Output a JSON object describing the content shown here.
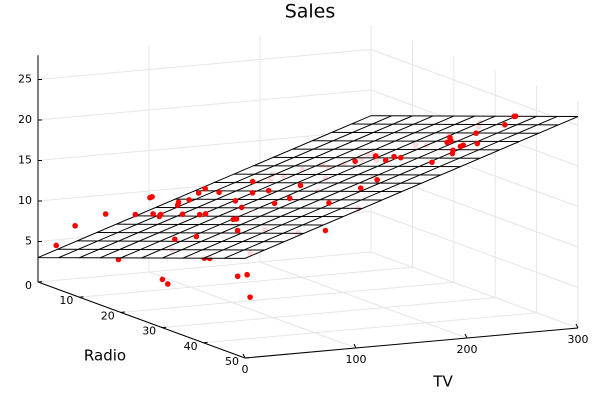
{
  "chart_data": {
    "type": "scatter3d",
    "title": "Sales",
    "x_label": "TV",
    "y_label": "Radio",
    "xlim": [
      0,
      300
    ],
    "ylim": [
      0,
      50
    ],
    "zlim": [
      0,
      28
    ],
    "xticks": [
      0,
      100,
      200,
      300
    ],
    "yticks": [
      0,
      10,
      20,
      30,
      40,
      50
    ],
    "zticks": [
      5,
      10,
      15,
      20,
      25
    ],
    "color": "#ff0000",
    "plane_color": "#000000",
    "grid": true,
    "x": [
      230.1,
      44.5,
      17.2,
      151.5,
      180.8,
      8.7,
      57.5,
      120.2,
      8.6,
      199.8,
      66.1,
      214.7,
      23.8,
      97.5,
      204.1,
      195.4,
      67.8,
      281.4,
      69.2,
      147.3,
      218.4,
      237.4,
      13.2,
      228.3,
      62.3,
      262.9,
      142.9,
      240.1,
      248.8,
      70.6,
      292.9,
      112.9,
      97.2,
      265.6,
      95.7,
      290.7,
      266.9,
      74.7,
      43.1,
      228,
      202.5,
      177,
      293.6,
      206.9,
      25.1,
      175.1,
      89.7,
      239.9,
      227.2,
      66.9,
      199.8,
      100.4,
      216.4,
      182.6,
      262.7,
      198.9,
      7.3,
      136.2,
      210.8,
      210.7,
      53.5,
      261.3,
      239.3,
      102.7,
      131.1,
      69,
      31.5,
      139.3,
      237.4,
      216.8,
      199.1,
      109.8,
      26.8,
      129.4,
      213.4,
      16.9,
      27.5,
      120.5,
      5.4,
      116,
      76.4,
      239.8,
      75.3,
      68.4,
      213.5,
      193.2,
      76.3,
      110.7,
      88.3,
      109.8
    ],
    "y": [
      37.8,
      39.3,
      45.9,
      41.3,
      10.8,
      48.9,
      32.8,
      19.6,
      2.1,
      2.6,
      5.8,
      24,
      35.1,
      7.6,
      32.9,
      47.7,
      36.6,
      39.6,
      20.5,
      23.9,
      27.7,
      5.1,
      15.9,
      16.9,
      12.6,
      3.5,
      29.3,
      16.7,
      27.1,
      16,
      28.3,
      17.4,
      1.5,
      20,
      1.4,
      4.1,
      43.8,
      49.4,
      26.7,
      37.7,
      22.3,
      33.4,
      27.7,
      8.4,
      25.7,
      22.5,
      9.9,
      41.5,
      15.8,
      11.7,
      3.1,
      9.6,
      41.7,
      46.2,
      28.8,
      49.4,
      28.1,
      19.2,
      49.6,
      29.5,
      2,
      42.7,
      15.5,
      29.6,
      42.8,
      9.3,
      24.6,
      14.5,
      27.5,
      43.9,
      30.6,
      14.3,
      33,
      5.7,
      24.6,
      43.7,
      1.6,
      28.5,
      29.9,
      7.7,
      26.7,
      4.1,
      20.3,
      44.5,
      43,
      18.4,
      27.5,
      40.6,
      25.5,
      47.8
    ],
    "z": [
      22.1,
      10.4,
      9.3,
      18.5,
      12.9,
      7.2,
      11.8,
      13.2,
      4.8,
      10.6,
      8.6,
      17.4,
      9.2,
      9.7,
      19,
      22.4,
      12.5,
      24.4,
      11.3,
      14.6,
      18,
      12.5,
      5.6,
      15.5,
      9.7,
      12,
      15,
      15.9,
      18.9,
      10.5,
      21.4,
      11.9,
      9.6,
      17.4,
      9.5,
      12.8,
      25.4,
      14.7,
      10.1,
      21.5,
      16.6,
      17.1,
      20.7,
      12.9,
      8.5,
      14.9,
      10.6,
      23.2,
      14.8,
      9.7,
      11.4,
      10.7,
      22.6,
      21.2,
      20.2,
      23.7,
      5.5,
      13.2,
      23.8,
      18.4,
      8.1,
      24.2,
      15.7,
      14,
      18,
      9.3,
      9.5,
      13.4,
      18.9,
      22.3,
      18.3,
      12.4,
      8.8,
      11,
      17,
      8.7,
      6.9,
      14.2,
      5.3,
      11,
      11.8,
      12.3,
      11.3,
      13.6,
      21.7,
      15.2,
      12,
      16,
      12.9,
      16.7
    ]
  }
}
